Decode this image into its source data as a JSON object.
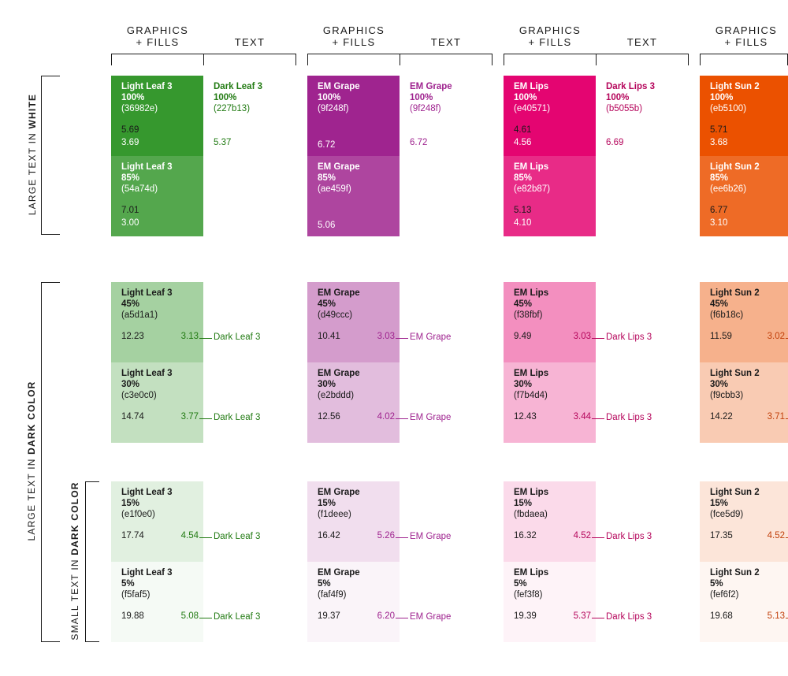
{
  "headers": {
    "graphics_fills": [
      "GRAPHICS",
      "+ FILLS"
    ],
    "text": "TEXT"
  },
  "side_labels": {
    "white": {
      "prefix": "LARGE TEXT IN ",
      "bold": "WHITE"
    },
    "dark_large": {
      "prefix": "LARGE TEXT IN ",
      "bold": "DARK COLOR"
    },
    "dark_small": {
      "prefix": "SMALL TEXT IN ",
      "bold": "DARK COLOR"
    }
  },
  "families": [
    {
      "text_color": "#227b13",
      "text_swatch": {
        "name": "Dark Leaf 3",
        "pct": "100%",
        "hex": "(227b13)",
        "ratio": "5.37"
      },
      "connector_label": "Dark Leaf 3",
      "white": [
        {
          "name": "Light Leaf 3",
          "pct": "100%",
          "hex": "(36982e)",
          "bg": "#36982e",
          "r1": "5.69",
          "r2": "3.69"
        },
        {
          "name": "Light Leaf 3",
          "pct": "85%",
          "hex": "(54a74d)",
          "bg": "#54a74d",
          "r1": "7.01",
          "r2": "3.00"
        }
      ],
      "dark": [
        {
          "name": "Light Leaf 3",
          "pct": "45%",
          "hex": "(a5d1a1)",
          "bg": "#a5d1a1",
          "left": "12.23",
          "right": "3.13"
        },
        {
          "name": "Light Leaf 3",
          "pct": "30%",
          "hex": "(c3e0c0)",
          "bg": "#c3e0c0",
          "left": "14.74",
          "right": "3.77"
        },
        {
          "name": "Light Leaf 3",
          "pct": "15%",
          "hex": "(e1f0e0)",
          "bg": "#e1f0e0",
          "left": "17.74",
          "right": "4.54"
        },
        {
          "name": "Light Leaf 3",
          "pct": "5%",
          "hex": "(f5faf5)",
          "bg": "#f5faf5",
          "left": "19.88",
          "right": "5.08"
        }
      ]
    },
    {
      "text_color": "#9f248f",
      "text_swatch": {
        "name": "EM Grape",
        "pct": "100%",
        "hex": "(9f248f)",
        "ratio": "6.72"
      },
      "connector_label": "EM Grape",
      "white": [
        {
          "name": "EM Grape",
          "pct": "100%",
          "hex": "(9f248f)",
          "bg": "#9f248f",
          "r1": "6.72",
          "r2": ""
        },
        {
          "name": "EM Grape",
          "pct": "85%",
          "hex": "(ae459f)",
          "bg": "#ae459f",
          "r1": "5.06",
          "r2": ""
        }
      ],
      "dark": [
        {
          "name": "EM Grape",
          "pct": "45%",
          "hex": "(d49ccc)",
          "bg": "#d49ccc",
          "left": "10.41",
          "right": "3.03"
        },
        {
          "name": "EM Grape",
          "pct": "30%",
          "hex": "(e2bddd)",
          "bg": "#e2bddd",
          "left": "12.56",
          "right": "4.02"
        },
        {
          "name": "EM Grape",
          "pct": "15%",
          "hex": "(f1deee)",
          "bg": "#f1deee",
          "left": "16.42",
          "right": "5.26"
        },
        {
          "name": "EM Grape",
          "pct": "5%",
          "hex": "(faf4f9)",
          "bg": "#faf4f9",
          "left": "19.37",
          "right": "6.20"
        }
      ]
    },
    {
      "text_color": "#b5055b",
      "text_swatch": {
        "name": "Dark Lips 3",
        "pct": "100%",
        "hex": "(b5055b)",
        "ratio": "6.69"
      },
      "connector_label": "Dark Lips 3",
      "white": [
        {
          "name": "EM Lips",
          "pct": "100%",
          "hex": "(e40571)",
          "bg": "#e40571",
          "r1": "4.61",
          "r2": "4.56"
        },
        {
          "name": "EM Lips",
          "pct": "85%",
          "hex": "(e82b87)",
          "bg": "#e82b87",
          "r1": "5.13",
          "r2": "4.10"
        }
      ],
      "dark": [
        {
          "name": "EM Lips",
          "pct": "45%",
          "hex": "(f38fbf)",
          "bg": "#f38fbf",
          "left": "9.49",
          "right": "3.03"
        },
        {
          "name": "EM Lips",
          "pct": "30%",
          "hex": "(f7b4d4)",
          "bg": "#f7b4d4",
          "left": "12.43",
          "right": "3.44"
        },
        {
          "name": "EM Lips",
          "pct": "15%",
          "hex": "(fbdaea)",
          "bg": "#fbdaea",
          "left": "16.32",
          "right": "4.52"
        },
        {
          "name": "EM Lips",
          "pct": "5%",
          "hex": "(fef3f8)",
          "bg": "#fef3f8",
          "left": "19.39",
          "right": "5.37"
        }
      ]
    },
    {
      "text_color": "#c2410c",
      "connector_label": "",
      "white": [
        {
          "name": "Light Sun 2",
          "pct": "100%",
          "hex": "(eb5100)",
          "bg": "#eb5100",
          "r1": "5.71",
          "r2": "3.68"
        },
        {
          "name": "Light Sun 2",
          "pct": "85%",
          "hex": "(ee6b26)",
          "bg": "#ee6b26",
          "r1": "6.77",
          "r2": "3.10"
        }
      ],
      "dark": [
        {
          "name": "Light Sun 2",
          "pct": "45%",
          "hex": "(f6b18c)",
          "bg": "#f6b18c",
          "left": "11.59",
          "right": "3.02"
        },
        {
          "name": "Light Sun 2",
          "pct": "30%",
          "hex": "(f9cbb3)",
          "bg": "#f9cbb3",
          "left": "14.22",
          "right": "3.71"
        },
        {
          "name": "Light Sun 2",
          "pct": "15%",
          "hex": "(fce5d9)",
          "bg": "#fce5d9",
          "left": "17.35",
          "right": "4.52"
        },
        {
          "name": "Light Sun 2",
          "pct": "5%",
          "hex": "(fef6f2)",
          "bg": "#fef6f2",
          "left": "19.68",
          "right": "5.13"
        }
      ]
    }
  ]
}
